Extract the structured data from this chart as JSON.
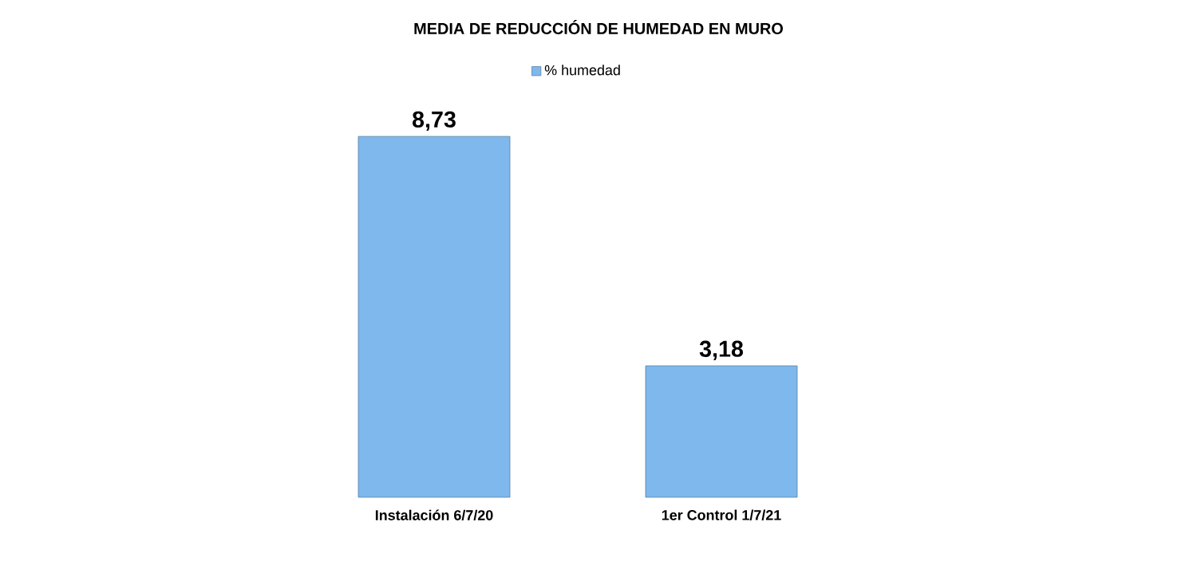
{
  "chart_data": {
    "type": "bar",
    "title": "MEDIA DE REDUCCIÓN DE HUMEDAD EN MURO",
    "categories": [
      "Instalación 6/7/20",
      "1er Control 1/7/21"
    ],
    "series": [
      {
        "name": "% humedad",
        "color": "#7fb8ec",
        "values": [
          8.73,
          3.18
        ],
        "value_labels": [
          "8,73",
          "3,18"
        ]
      }
    ],
    "legend": "top"
  }
}
